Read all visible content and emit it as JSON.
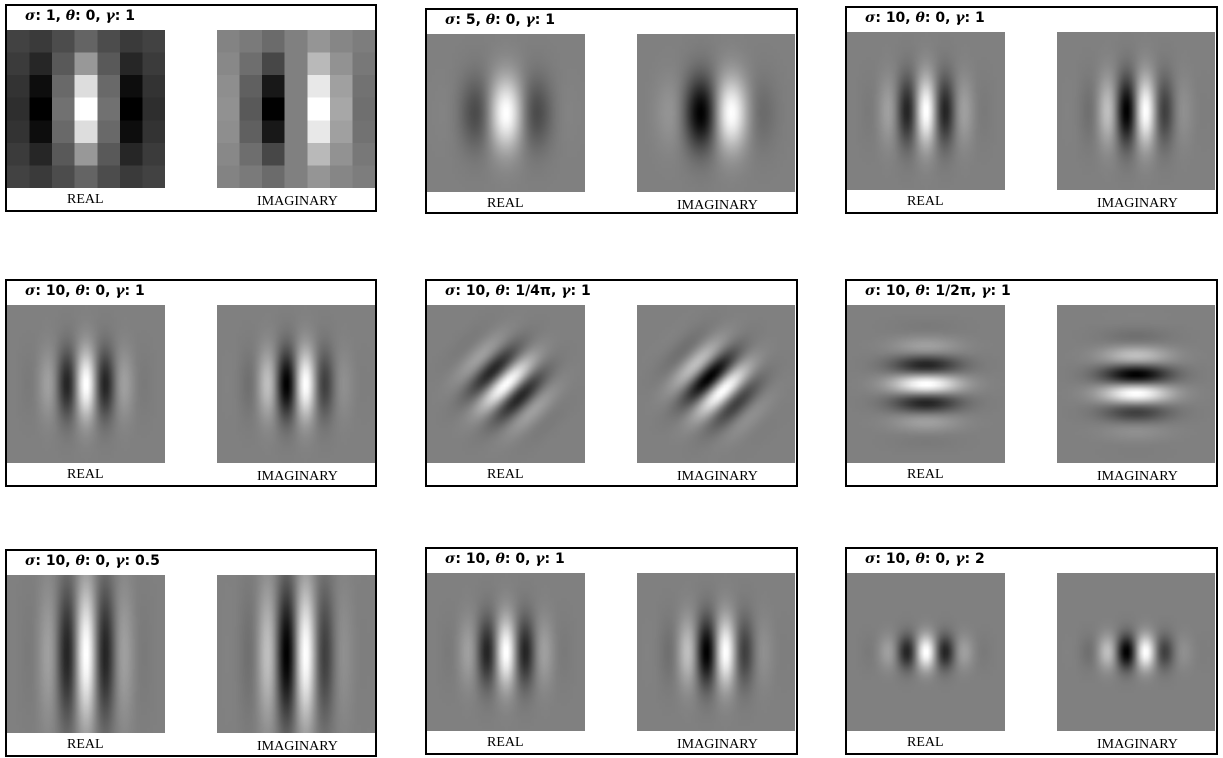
{
  "captions": {
    "real": "REAL",
    "imaginary": "IMAGINARY"
  },
  "panels": [
    {
      "id": "p1",
      "sigma": "1",
      "theta": "0",
      "gamma": "1",
      "theta_rad": 0,
      "gamma_val": 1,
      "sigma_val": 1,
      "pixelated": true
    },
    {
      "id": "p2",
      "sigma": "5",
      "theta": "0",
      "gamma": "1",
      "theta_rad": 0,
      "gamma_val": 1,
      "sigma_val": 5,
      "pixelated": false
    },
    {
      "id": "p3",
      "sigma": "10",
      "theta": "0",
      "gamma": "1",
      "theta_rad": 0,
      "gamma_val": 1,
      "sigma_val": 10,
      "pixelated": false
    },
    {
      "id": "p4",
      "sigma": "10",
      "theta": "0",
      "gamma": "1",
      "theta_rad": 0,
      "gamma_val": 1,
      "sigma_val": 10,
      "pixelated": false
    },
    {
      "id": "p5",
      "sigma": "10",
      "theta": "1/4π",
      "gamma": "1",
      "theta_rad": 0.785398,
      "gamma_val": 1,
      "sigma_val": 10,
      "pixelated": false
    },
    {
      "id": "p6",
      "sigma": "10",
      "theta": "1/2π",
      "gamma": "1",
      "theta_rad": 1.570796,
      "gamma_val": 1,
      "sigma_val": 10,
      "pixelated": false
    },
    {
      "id": "p7",
      "sigma": "10",
      "theta": "0",
      "gamma": "0.5",
      "theta_rad": 0,
      "gamma_val": 0.5,
      "sigma_val": 10,
      "pixelated": false
    },
    {
      "id": "p8",
      "sigma": "10",
      "theta": "0",
      "gamma": "1",
      "theta_rad": 0,
      "gamma_val": 1,
      "sigma_val": 10,
      "pixelated": false
    },
    {
      "id": "p9",
      "sigma": "10",
      "theta": "0",
      "gamma": "2",
      "theta_rad": 0,
      "gamma_val": 2,
      "sigma_val": 10,
      "pixelated": false
    }
  ],
  "symbols": {
    "sigma": "σ",
    "theta": "θ",
    "gamma": "γ"
  }
}
